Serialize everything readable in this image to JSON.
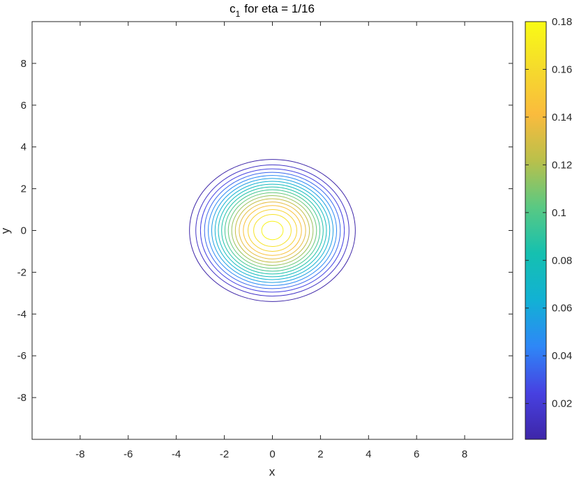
{
  "chart_data": {
    "type": "contour",
    "title": {
      "base": "c",
      "subscript": "1",
      "rest": "for eta = 1/16"
    },
    "xlabel": "x",
    "ylabel": "y",
    "xlim": [
      -10,
      10
    ],
    "ylim": [
      -10,
      10
    ],
    "x_ticks": [
      -8,
      -6,
      -4,
      -2,
      0,
      2,
      4,
      6,
      8
    ],
    "y_ticks": [
      -8,
      -6,
      -4,
      -2,
      0,
      2,
      4,
      6,
      8
    ],
    "grid": false,
    "center": [
      0,
      0
    ],
    "peak_value": 0.18,
    "outer_level_radius": {
      "x": 3.45,
      "y": 3.4
    },
    "level_min": 0.005,
    "level_max": 0.175,
    "level_count": 18,
    "colorbar": {
      "range": [
        0.005,
        0.18
      ],
      "ticks": [
        0.02,
        0.04,
        0.06,
        0.08,
        0.1,
        0.12,
        0.14,
        0.16,
        0.18
      ],
      "tick_labels": [
        "0.02",
        "0.04",
        "0.06",
        "0.08",
        "0.1",
        "0.12",
        "0.14",
        "0.16",
        "0.18"
      ],
      "colormap": "parula",
      "colormap_stops": [
        "#3e26a8",
        "#4741e1",
        "#2e87f7",
        "#12b1d4",
        "#15c0b0",
        "#59c983",
        "#b9c04b",
        "#fabb3d",
        "#f5db2c",
        "#f9fb15"
      ]
    }
  }
}
